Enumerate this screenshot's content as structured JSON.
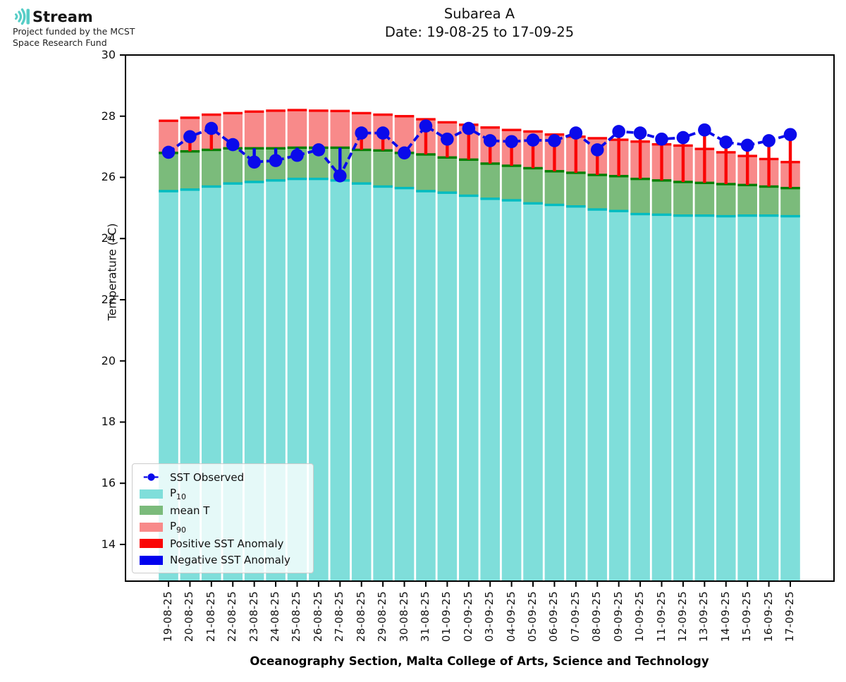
{
  "logo": {
    "name": "Stream",
    "funding_line1": "Project funded by the MCST",
    "funding_line2": "Space Research Fund"
  },
  "title": {
    "line1": "Subarea A",
    "line2": "Date: 19-08-25 to 17-09-25"
  },
  "chart_data": {
    "type": "bar",
    "title": "Subarea A",
    "subtitle": "Date: 19-08-25 to 17-09-25",
    "xlabel": "Oceanography Section, Malta College of Arts, Science and Technology",
    "ylabel": "Temperature (°C)",
    "ylim": [
      12.8,
      30
    ],
    "yticks": [
      30,
      28,
      26,
      24,
      22,
      20,
      18,
      16,
      14
    ],
    "grid": false,
    "legend_position": "lower left",
    "categories": [
      "19-08-25",
      "20-08-25",
      "21-08-25",
      "22-08-25",
      "23-08-25",
      "24-08-25",
      "25-08-25",
      "26-08-25",
      "27-08-25",
      "28-08-25",
      "29-08-25",
      "30-08-25",
      "31-08-25",
      "01-09-25",
      "02-09-25",
      "03-09-25",
      "04-09-25",
      "05-09-25",
      "06-09-25",
      "07-09-25",
      "08-09-25",
      "09-09-25",
      "10-09-25",
      "11-09-25",
      "12-09-25",
      "13-09-25",
      "14-09-25",
      "15-09-25",
      "16-09-25",
      "17-09-25"
    ],
    "series": [
      {
        "name": "P10",
        "role": "stacked-bar-segment-top",
        "values": [
          25.55,
          25.6,
          25.7,
          25.8,
          25.85,
          25.9,
          25.95,
          25.95,
          25.9,
          25.8,
          25.7,
          25.65,
          25.55,
          25.5,
          25.4,
          25.3,
          25.25,
          25.15,
          25.1,
          25.05,
          24.95,
          24.9,
          24.8,
          24.78,
          24.75,
          24.75,
          24.73,
          24.75,
          24.75,
          24.73
        ]
      },
      {
        "name": "mean T",
        "role": "stacked-bar-segment-top",
        "values": [
          26.8,
          26.85,
          26.9,
          26.95,
          26.95,
          26.95,
          26.97,
          26.97,
          26.97,
          26.9,
          26.88,
          26.8,
          26.75,
          26.65,
          26.58,
          26.45,
          26.38,
          26.3,
          26.2,
          26.15,
          26.08,
          26.04,
          25.95,
          25.9,
          25.85,
          25.82,
          25.78,
          25.75,
          25.7,
          25.65
        ]
      },
      {
        "name": "P90",
        "role": "stacked-bar-segment-top",
        "values": [
          27.85,
          27.95,
          28.05,
          28.1,
          28.15,
          28.18,
          28.2,
          28.18,
          28.17,
          28.1,
          28.05,
          28.0,
          27.9,
          27.8,
          27.72,
          27.63,
          27.55,
          27.5,
          27.4,
          27.33,
          27.28,
          27.23,
          27.17,
          27.08,
          27.04,
          26.93,
          26.82,
          26.7,
          26.6,
          26.5
        ]
      },
      {
        "name": "SST Observed",
        "role": "line-with-markers",
        "values": [
          26.82,
          27.33,
          27.6,
          27.07,
          26.5,
          26.55,
          26.72,
          26.9,
          26.05,
          27.45,
          27.45,
          26.8,
          27.68,
          27.25,
          27.6,
          27.2,
          27.17,
          27.22,
          27.2,
          27.45,
          26.9,
          27.5,
          27.45,
          27.25,
          27.3,
          27.55,
          27.15,
          27.05,
          27.2,
          27.4
        ]
      }
    ],
    "anomaly": {
      "baseline": "mean T",
      "positive_label": "Positive SST Anomaly",
      "negative_label": "Negative SST Anomaly"
    },
    "colors": {
      "p10_fill": "#7fdeda",
      "p10_edge": "#00bcc1",
      "mean_fill": "#7bbb7b",
      "mean_edge": "#008000",
      "p90_fill": "#f88a8a",
      "p90_edge": "#fa0505",
      "observed": "#0a0aeb",
      "anomaly_positive": "#fa0505",
      "anomaly_negative": "#0202ee",
      "logo_teal": "#56cdc6"
    }
  },
  "legend": {
    "items": [
      {
        "label": "SST Observed",
        "marker": "line-dot",
        "color": "#0a0aeb"
      },
      {
        "base": "P",
        "sub": "10",
        "marker": "patch",
        "color": "#7fdeda"
      },
      {
        "label": "mean T",
        "marker": "patch",
        "color": "#7bbb7b"
      },
      {
        "base": "P",
        "sub": "90",
        "marker": "patch",
        "color": "#f88a8a"
      },
      {
        "label": "Positive SST Anomaly",
        "marker": "patch",
        "color": "#fa0505"
      },
      {
        "label": "Negative SST Anomaly",
        "marker": "patch",
        "color": "#0202ee"
      }
    ]
  }
}
